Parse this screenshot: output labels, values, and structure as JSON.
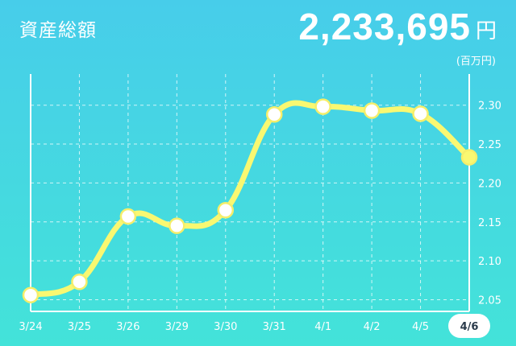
{
  "header": {
    "title": "資産総額",
    "total": "2,233,695",
    "currency": "円"
  },
  "colors": {
    "line": "#f9f871",
    "point_fill": "#ffffff",
    "point_stroke": "#f5ee6a",
    "last_point_fill": "#f9f871",
    "grid": "#ffffff",
    "selected_tab_bg": "#ffffff",
    "selected_tab_text": "#2a3a4a"
  },
  "chart_data": {
    "type": "line",
    "title": "",
    "xlabel": "",
    "ylabel": "(百万円)",
    "categories": [
      "3/24",
      "3/25",
      "3/26",
      "3/29",
      "3/30",
      "3/31",
      "4/1",
      "4/2",
      "4/5",
      "4/6"
    ],
    "series": [
      {
        "values": [
          2.056,
          2.073,
          2.157,
          2.145,
          2.165,
          2.288,
          2.298,
          2.293,
          2.289,
          2.233
        ]
      }
    ],
    "yticks": [
      "2.05",
      "2.10",
      "2.15",
      "2.20",
      "2.25",
      "2.30"
    ],
    "ylim": [
      2.035,
      2.34
    ],
    "grid": true,
    "selected_category": "4/6"
  }
}
